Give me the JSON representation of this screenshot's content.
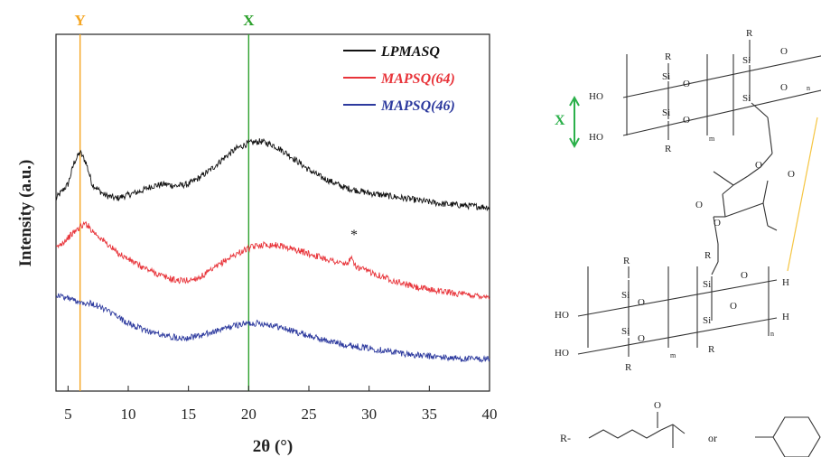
{
  "chart_data": {
    "type": "line",
    "title": "",
    "xlabel": "2θ (°)",
    "ylabel": "Intensity (a.u.)",
    "xlim": [
      4,
      40
    ],
    "xticks": [
      5,
      10,
      15,
      20,
      25,
      30,
      35,
      40
    ],
    "y_ticks_shown": false,
    "grid": false,
    "legend_position": "top-right",
    "reference_lines": [
      {
        "label": "Y",
        "x": 6,
        "color": "#f5a623"
      },
      {
        "label": "X",
        "x": 20,
        "color": "#2ca02c"
      }
    ],
    "annotations": [
      {
        "text": "*",
        "x": 28.6,
        "series": "MAPSQ(64)"
      }
    ],
    "series": [
      {
        "name": "LPMASQ",
        "color": "#111111",
        "x": [
          4,
          5,
          5.5,
          6,
          6.5,
          7,
          8,
          9,
          10,
          11,
          12,
          13,
          14,
          15,
          16,
          17,
          18,
          19,
          20,
          21,
          22,
          23,
          24,
          25,
          26,
          27,
          28,
          30,
          32,
          34,
          36,
          38,
          40
        ],
        "y": [
          0.54,
          0.58,
          0.64,
          0.67,
          0.64,
          0.58,
          0.55,
          0.54,
          0.55,
          0.56,
          0.575,
          0.58,
          0.575,
          0.58,
          0.6,
          0.625,
          0.655,
          0.68,
          0.695,
          0.7,
          0.69,
          0.67,
          0.645,
          0.62,
          0.6,
          0.585,
          0.57,
          0.555,
          0.545,
          0.535,
          0.525,
          0.52,
          0.515
        ]
      },
      {
        "name": "MAPSQ(64)",
        "color": "#e8343a",
        "x": [
          4,
          5,
          6,
          6.5,
          7,
          8,
          9,
          10,
          11,
          12,
          13,
          14,
          15,
          16,
          17,
          18,
          19,
          20,
          21,
          22,
          23,
          24,
          25,
          26,
          27,
          28,
          28.6,
          29,
          30,
          32,
          34,
          36,
          38,
          40
        ],
        "y": [
          0.4,
          0.43,
          0.46,
          0.47,
          0.45,
          0.42,
          0.39,
          0.37,
          0.35,
          0.335,
          0.32,
          0.31,
          0.31,
          0.32,
          0.34,
          0.365,
          0.385,
          0.4,
          0.41,
          0.41,
          0.405,
          0.395,
          0.385,
          0.375,
          0.365,
          0.355,
          0.37,
          0.345,
          0.335,
          0.31,
          0.29,
          0.28,
          0.27,
          0.265
        ]
      },
      {
        "name": "MAPSQ(46)",
        "color": "#2d3a9e",
        "x": [
          4,
          5,
          6,
          7,
          8,
          9,
          10,
          11,
          12,
          13,
          14,
          15,
          16,
          17,
          18,
          19,
          20,
          21,
          22,
          23,
          24,
          25,
          26,
          28,
          30,
          32,
          34,
          36,
          38,
          40
        ],
        "y": [
          0.27,
          0.26,
          0.25,
          0.245,
          0.23,
          0.21,
          0.19,
          0.175,
          0.165,
          0.155,
          0.15,
          0.15,
          0.155,
          0.165,
          0.175,
          0.185,
          0.19,
          0.19,
          0.185,
          0.175,
          0.165,
          0.155,
          0.145,
          0.13,
          0.12,
          0.11,
          0.1,
          0.095,
          0.09,
          0.09
        ]
      }
    ]
  },
  "structure": {
    "labels": {
      "x_arrow": "X",
      "ho": "HO",
      "si": "Si",
      "o": "O",
      "r": "R",
      "h": "H",
      "m": "m",
      "n": "n",
      "r_def": "R-",
      "or": "or"
    }
  }
}
